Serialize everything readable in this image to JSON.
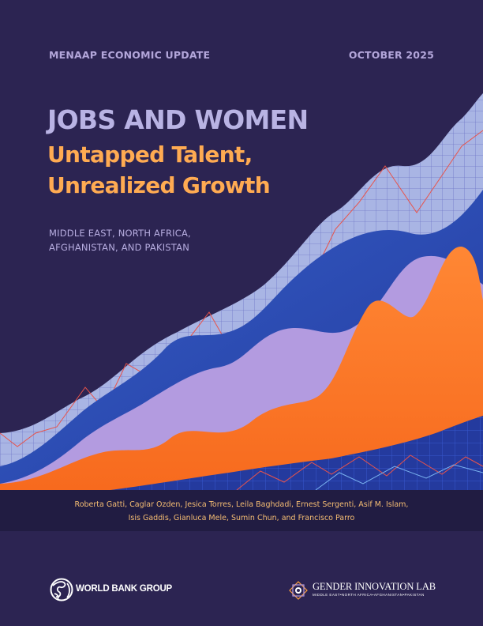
{
  "header": {
    "series": "MENAAP ECONOMIC UPDATE",
    "date": "OCTOBER 2025"
  },
  "title": {
    "main": "JOBS AND WOMEN",
    "subtitle_line1": "Untapped Talent,",
    "subtitle_line2": "Unrealized Growth"
  },
  "region": {
    "line1": "MIDDLE EAST, NORTH AFRICA,",
    "line2": "AFGHANISTAN, AND PAKISTAN"
  },
  "authors": {
    "line1": "Roberta Gatti, Caglar Ozden, Jesica Torres, Leila Baghdadi, Ernest Sergenti, Asif M. Islam,",
    "line2": "Isis Gaddis, Gianluca Mele, Sumin Chun, and Francisco Parro"
  },
  "logos": {
    "world_bank": "WORLD BANK GROUP",
    "gender_lab": "GENDER INNOVATION LAB",
    "gender_lab_sub": "MIDDLE EAST•NORTH AFRICA•AFGHANISTAN•PAKISTAN"
  },
  "colors": {
    "background": "#2c2452",
    "accent_orange": "#ff9f45",
    "lavender": "#b9b3e4",
    "blue": "#3f5fc7",
    "author_bar": "#211c42"
  }
}
